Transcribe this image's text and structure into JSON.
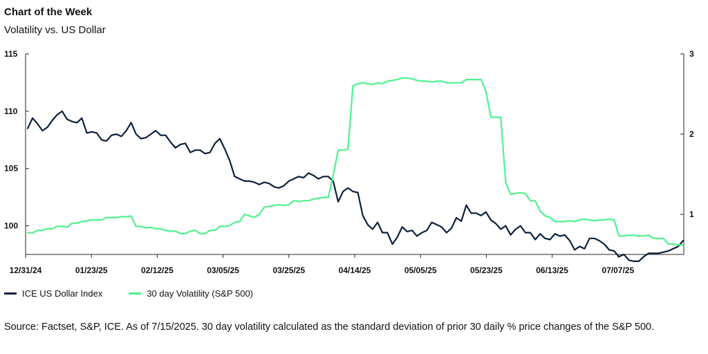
{
  "header": {
    "title": "Chart of the Week",
    "subtitle": "Volatility vs. US Dollar"
  },
  "footer": {
    "source": "Source: Factset, S&P, ICE. As of 7/15/2025. 30 day volatility calculated as the standard deviation of prior 30 daily % price changes of the S&P 500."
  },
  "chart_data": {
    "type": "line",
    "title": "Volatility vs. US Dollar",
    "x_tick_labels": [
      "12/31/24",
      "01/23/25",
      "02/12/25",
      "03/05/25",
      "03/25/25",
      "04/14/25",
      "05/05/25",
      "05/23/25",
      "06/13/25",
      "07/07/25"
    ],
    "y_left": {
      "ticks": [
        "115",
        "110",
        "105",
        "100"
      ],
      "range": [
        97.5,
        115
      ]
    },
    "y_right": {
      "ticks": [
        "3",
        "2",
        "1"
      ],
      "range": [
        0.5,
        3
      ]
    },
    "grid": false,
    "legend_position": "bottom-left",
    "series": [
      {
        "name": "ICE US Dollar Index",
        "axis": "left",
        "color": "#0b1f3a",
        "values": [
          108.5,
          109.4,
          108.9,
          108.3,
          108.6,
          109.2,
          109.7,
          110.0,
          109.3,
          109.1,
          109.0,
          109.4,
          108.1,
          108.2,
          108.1,
          107.5,
          107.4,
          107.9,
          108.0,
          107.8,
          108.3,
          109.0,
          108.0,
          107.6,
          107.7,
          108.0,
          108.3,
          107.9,
          107.9,
          107.3,
          106.8,
          107.1,
          107.2,
          106.4,
          106.6,
          106.6,
          106.3,
          106.4,
          107.2,
          107.6,
          106.7,
          105.7,
          104.3,
          104.1,
          103.9,
          103.9,
          103.8,
          103.6,
          103.8,
          103.7,
          103.4,
          103.3,
          103.5,
          103.9,
          104.1,
          104.3,
          104.2,
          104.6,
          104.4,
          104.1,
          104.3,
          104.3,
          103.9,
          102.1,
          103.0,
          103.3,
          103.0,
          102.9,
          100.9,
          100.1,
          99.7,
          100.3,
          99.4,
          99.4,
          98.4,
          99.0,
          99.9,
          99.5,
          99.6,
          99.1,
          99.4,
          99.6,
          100.3,
          100.1,
          99.9,
          99.4,
          99.8,
          100.7,
          100.4,
          101.8,
          101.1,
          101.1,
          100.9,
          101.2,
          100.5,
          100.2,
          99.7,
          100.0,
          99.2,
          99.7,
          100.0,
          99.4,
          99.4,
          98.8,
          99.3,
          98.9,
          98.8,
          99.3,
          99.1,
          99.2,
          98.7,
          97.9,
          98.2,
          98.0,
          98.9,
          98.9,
          98.7,
          98.4,
          97.9,
          97.8,
          97.3,
          97.5,
          97.0,
          96.9,
          96.9,
          97.3,
          97.6,
          97.6,
          97.6,
          97.7,
          97.8,
          98.0,
          98.2,
          98.7
        ]
      },
      {
        "name": "30 day Volatility (S&P 500)",
        "axis": "right",
        "color": "#4df28c",
        "values": [
          0.77,
          0.77,
          0.8,
          0.8,
          0.82,
          0.82,
          0.85,
          0.85,
          0.84,
          0.89,
          0.89,
          0.91,
          0.92,
          0.93,
          0.93,
          0.93,
          0.96,
          0.96,
          0.96,
          0.97,
          0.97,
          0.98,
          0.85,
          0.85,
          0.83,
          0.84,
          0.82,
          0.82,
          0.8,
          0.79,
          0.79,
          0.76,
          0.76,
          0.79,
          0.8,
          0.76,
          0.76,
          0.8,
          0.8,
          0.85,
          0.85,
          0.86,
          0.9,
          0.91,
          1.0,
          0.98,
          0.96,
          1.0,
          1.09,
          1.1,
          1.11,
          1.12,
          1.11,
          1.12,
          1.17,
          1.16,
          1.17,
          1.17,
          1.19,
          1.2,
          1.21,
          1.21,
          1.48,
          1.8,
          1.8,
          1.81,
          2.6,
          2.63,
          2.64,
          2.63,
          2.62,
          2.64,
          2.63,
          2.66,
          2.67,
          2.68,
          2.7,
          2.7,
          2.69,
          2.67,
          2.66,
          2.66,
          2.65,
          2.66,
          2.66,
          2.64,
          2.64,
          2.64,
          2.64,
          2.68,
          2.68,
          2.68,
          2.68,
          2.53,
          2.21,
          2.21,
          2.21,
          1.4,
          1.25,
          1.26,
          1.27,
          1.26,
          1.17,
          1.17,
          1.04,
          0.98,
          0.96,
          0.91,
          0.91,
          0.91,
          0.92,
          0.91,
          0.93,
          0.94,
          0.93,
          0.92,
          0.93,
          0.93,
          0.94,
          0.93,
          0.73,
          0.73,
          0.74,
          0.74,
          0.73,
          0.73,
          0.74,
          0.7,
          0.7,
          0.7,
          0.63,
          0.63,
          0.62,
          0.62
        ]
      }
    ]
  }
}
